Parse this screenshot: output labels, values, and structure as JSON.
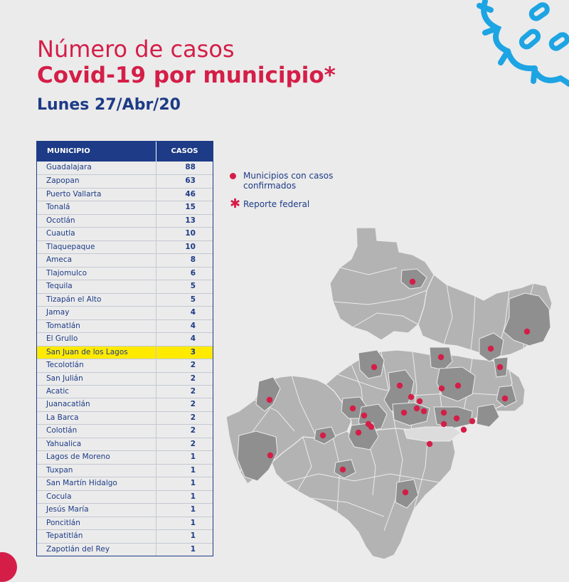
{
  "title_line1": "Número de casos",
  "title_line2": "Covid-19 por municipio*",
  "subtitle": "Lunes 27/Abr/20",
  "table": {
    "header_municipio": "MUNICIPIO",
    "header_casos": "CASOS",
    "rows": [
      {
        "municipio": "Guadalajara",
        "casos": 88
      },
      {
        "municipio": "Zapopan",
        "casos": 63
      },
      {
        "municipio": "Puerto Vallarta",
        "casos": 46
      },
      {
        "municipio": "Tonalá",
        "casos": 15
      },
      {
        "municipio": "Ocotlán",
        "casos": 13
      },
      {
        "municipio": "Cuautla",
        "casos": 10
      },
      {
        "municipio": "Tlaquepaque",
        "casos": 10
      },
      {
        "municipio": "Ameca",
        "casos": 8
      },
      {
        "municipio": "Tlajomulco",
        "casos": 6
      },
      {
        "municipio": "Tequila",
        "casos": 5
      },
      {
        "municipio": "Tizapán el Alto",
        "casos": 5
      },
      {
        "municipio": "Jamay",
        "casos": 4
      },
      {
        "municipio": "Tomatlán",
        "casos": 4
      },
      {
        "municipio": "El Grullo",
        "casos": 4
      },
      {
        "municipio": "San Juan de los Lagos",
        "casos": 3,
        "highlight": true
      },
      {
        "municipio": "Tecolotlán",
        "casos": 2
      },
      {
        "municipio": "San Julián",
        "casos": 2
      },
      {
        "municipio": "Acatic",
        "casos": 2
      },
      {
        "municipio": "Juanacatlán",
        "casos": 2
      },
      {
        "municipio": "La Barca",
        "casos": 2
      },
      {
        "municipio": "Colotlán",
        "casos": 2
      },
      {
        "municipio": "Yahualica",
        "casos": 2
      },
      {
        "municipio": "Lagos de Moreno",
        "casos": 1
      },
      {
        "municipio": "Tuxpan",
        "casos": 1
      },
      {
        "municipio": "San Martín Hidalgo",
        "casos": 1
      },
      {
        "municipio": "Cocula",
        "casos": 1
      },
      {
        "municipio": "Jesús María",
        "casos": 1
      },
      {
        "municipio": "Poncitlán",
        "casos": 1
      },
      {
        "municipio": "Tepatitlán",
        "casos": 1
      },
      {
        "municipio": "Zapotlán del Rey",
        "casos": 1
      }
    ]
  },
  "legend": {
    "confirmed": "Municipios con casos confirmados",
    "federal": "Reporte federal"
  },
  "colors": {
    "accent_red": "#d41e48",
    "navy": "#1d3b86",
    "highlight": "#ffea00",
    "map_base": "#b3b3b3",
    "map_case": "#8f8f8f",
    "lake": "#dcdcdc",
    "decor": "#1da4e3"
  },
  "icons": {
    "confirmed": "dot-icon",
    "federal": "asterisk-icon",
    "decoration": "virus-icon"
  }
}
